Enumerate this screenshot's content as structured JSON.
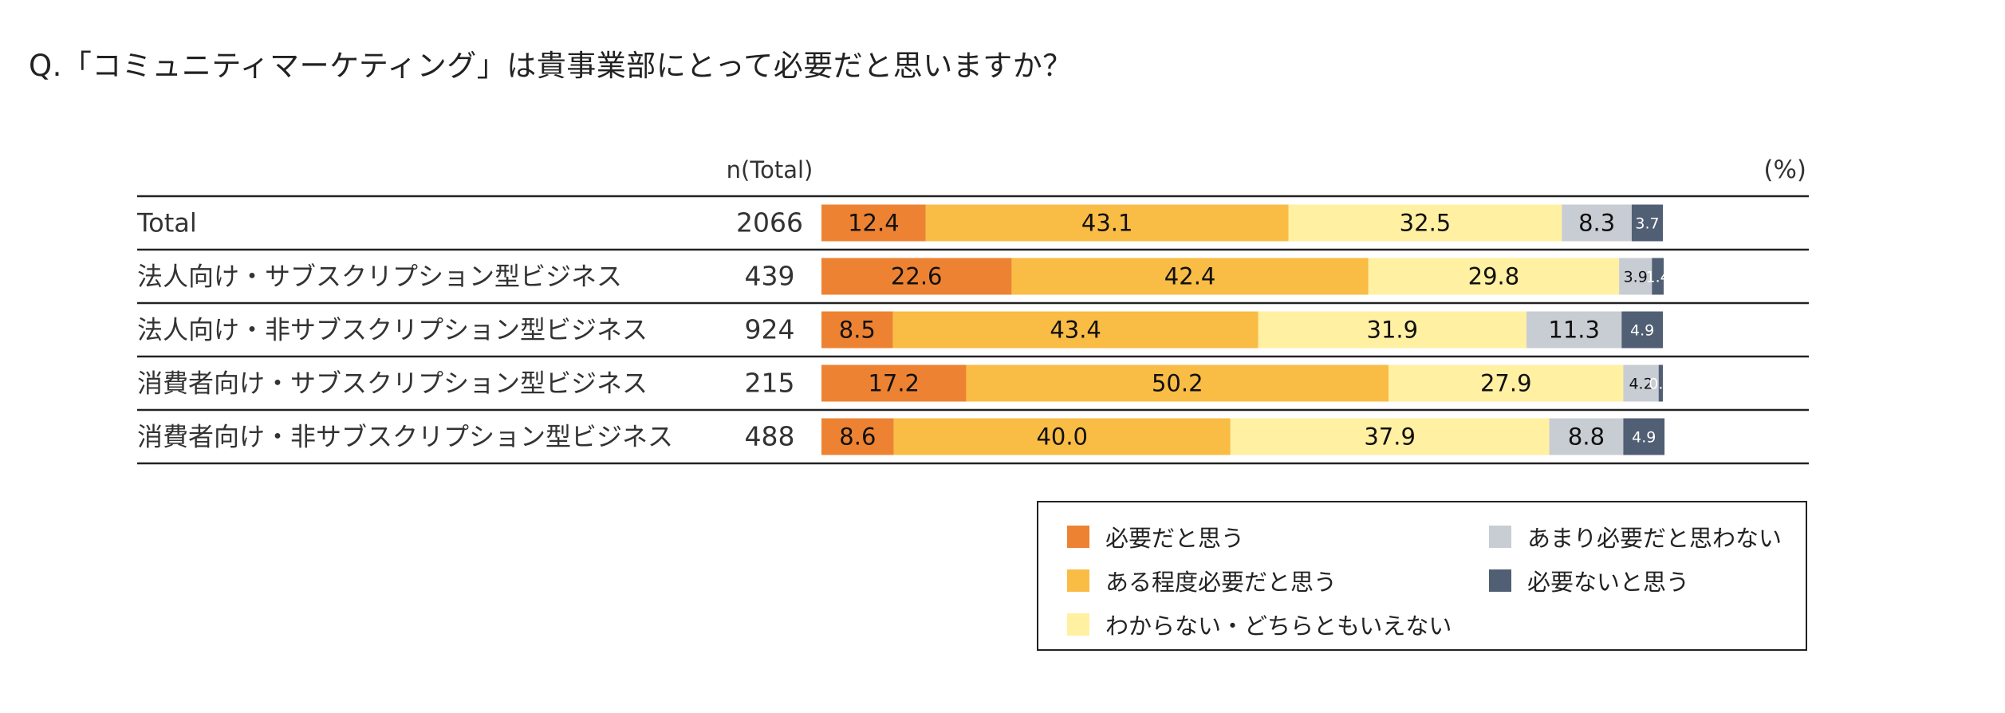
{
  "question": "Q.「コミュニティマーケティング」は貴事業部にとって必要だと思いますか？",
  "chart_data": {
    "type": "bar",
    "orientation": "horizontal",
    "stacked": true,
    "n_header": "n(Total)",
    "unit_label": "(%)",
    "categories": [
      "Total",
      "法人向け・サブスクリプション型ビジネス",
      "法人向け・非サブスクリプション型ビジネス",
      "消費者向け・サブスクリプション型ビジネス",
      "消費者向け・非サブスクリプション型ビジネス"
    ],
    "n_values": [
      "2066",
      "439",
      "924",
      "215",
      "488"
    ],
    "series": [
      {
        "name": "必要だと思う",
        "color": "#ED8332",
        "values": [
          12.4,
          22.6,
          8.5,
          17.2,
          8.6
        ]
      },
      {
        "name": "ある程度必要だと思う",
        "color": "#F9BC45",
        "values": [
          43.1,
          42.4,
          43.4,
          50.2,
          40.0
        ]
      },
      {
        "name": "わからない・どちらともいえない",
        "color": "#FFF0A2",
        "values": [
          32.5,
          29.8,
          31.9,
          27.9,
          37.9
        ]
      },
      {
        "name": "あまり必要だと思わない",
        "color": "#C8CCD3",
        "values": [
          8.3,
          3.9,
          11.3,
          4.2,
          8.8
        ]
      },
      {
        "name": "必要ないと思う",
        "color": "#505F73",
        "values": [
          3.7,
          1.4,
          4.9,
          0.5,
          4.9
        ]
      }
    ],
    "value_labels": [
      [
        "12.4",
        "43.1",
        "32.5",
        "8.3",
        "3.7"
      ],
      [
        "22.6",
        "42.4",
        "29.8",
        "3.9",
        "1.4"
      ],
      [
        "8.5",
        "43.4",
        "31.9",
        "11.3",
        "4.9"
      ],
      [
        "17.2",
        "50.2",
        "27.9",
        "4.2",
        "0.5"
      ],
      [
        "8.6",
        "40.0",
        "37.9",
        "8.8",
        "4.9"
      ]
    ],
    "legend": {
      "placement": "bottom-right",
      "order": [
        0,
        3,
        1,
        4,
        2
      ]
    }
  }
}
